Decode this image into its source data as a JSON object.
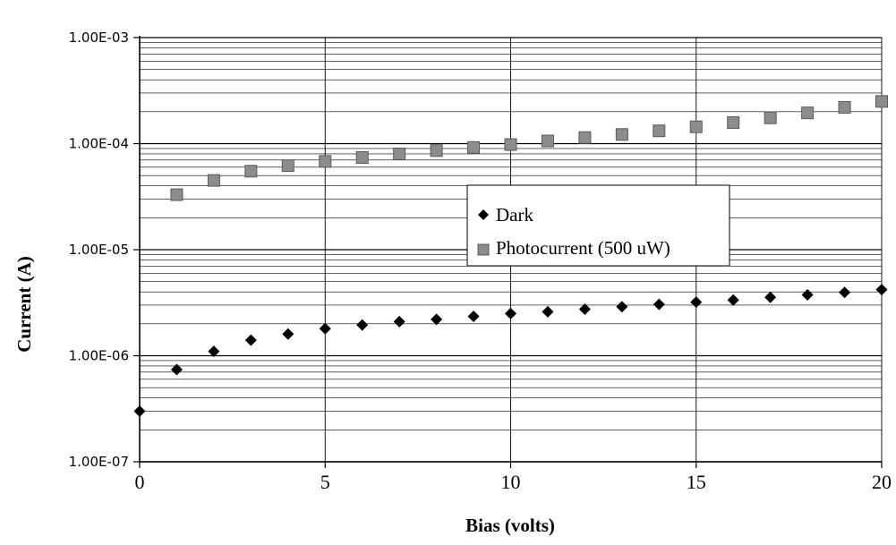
{
  "chart_data": {
    "type": "scatter",
    "title": "",
    "xlabel": "Bias (volts)",
    "ylabel": "Current (A)",
    "xlim": [
      0,
      20
    ],
    "ylim": [
      1e-07,
      0.001
    ],
    "yscale": "log",
    "grid": true,
    "legend_position": "center-right",
    "x_tick_labels": [
      "0",
      "5",
      "10",
      "15",
      "20"
    ],
    "y_tick_labels": [
      "1.00E-07",
      "1.00E-06",
      "1.00E-05",
      "1.00E-04",
      "1.00E-03"
    ],
    "series": [
      {
        "name": "Dark",
        "marker": "diamond",
        "color": "#000000",
        "x": [
          0,
          1,
          2,
          3,
          4,
          5,
          6,
          7,
          8,
          9,
          10,
          11,
          12,
          13,
          14,
          15,
          16,
          17,
          18,
          19,
          20
        ],
        "y": [
          3e-07,
          7.4e-07,
          1.1e-06,
          1.4e-06,
          1.6e-06,
          1.8e-06,
          1.95e-06,
          2.1e-06,
          2.2e-06,
          2.35e-06,
          2.5e-06,
          2.6e-06,
          2.75e-06,
          2.9e-06,
          3.05e-06,
          3.2e-06,
          3.35e-06,
          3.55e-06,
          3.75e-06,
          3.95e-06,
          4.2e-06
        ]
      },
      {
        "name": "Photocurrent (500 uW)",
        "marker": "square",
        "color": "#8c8c8c",
        "x": [
          1,
          2,
          3,
          4,
          5,
          6,
          7,
          8,
          9,
          10,
          11,
          12,
          13,
          14,
          15,
          16,
          17,
          18,
          19,
          20
        ],
        "y": [
          3.3e-05,
          4.5e-05,
          5.5e-05,
          6.2e-05,
          6.8e-05,
          7.4e-05,
          8e-05,
          8.6e-05,
          9.2e-05,
          9.8e-05,
          0.000106,
          0.000114,
          0.000122,
          0.000132,
          0.000144,
          0.000158,
          0.000175,
          0.000195,
          0.00022,
          0.00025
        ]
      }
    ]
  }
}
